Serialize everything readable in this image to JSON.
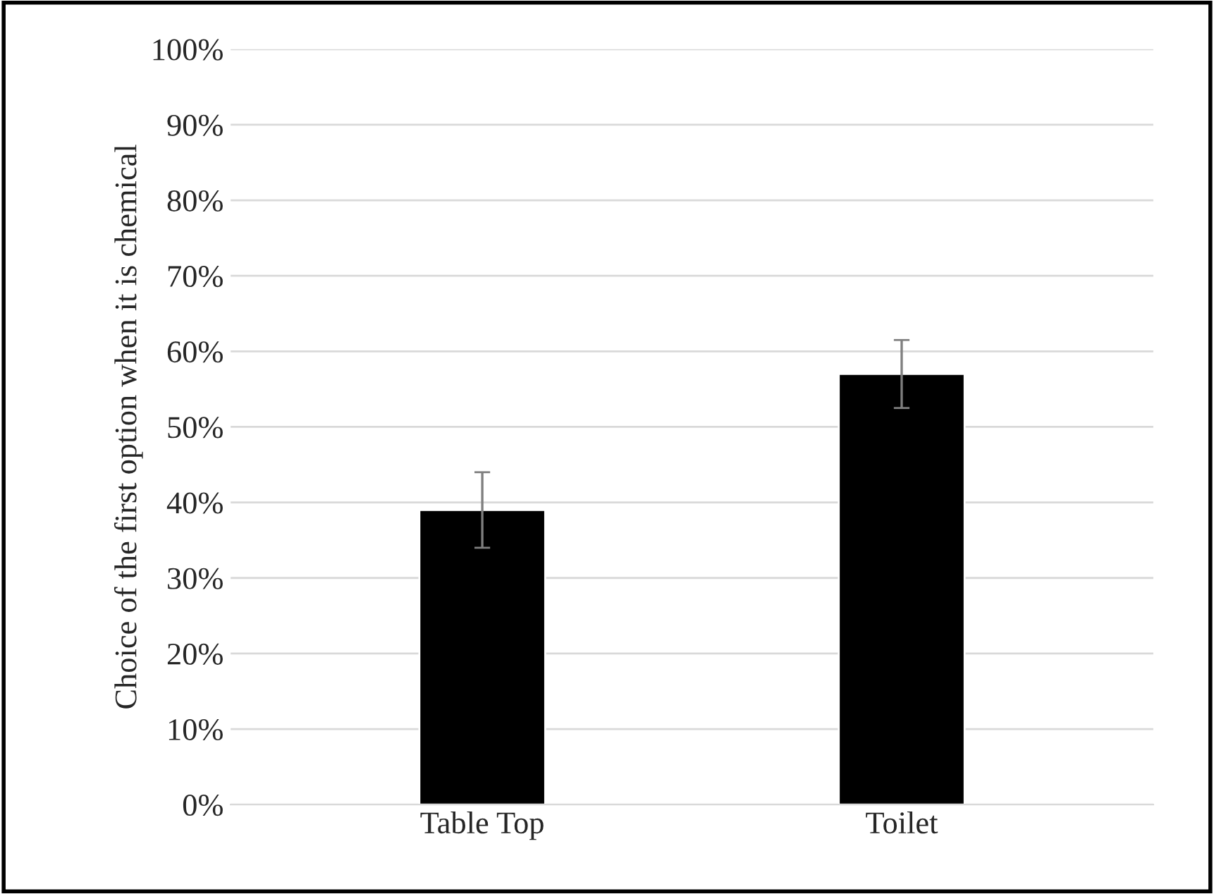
{
  "chart_data": {
    "type": "bar",
    "ylabel": "Choice of the first option when it is chemical",
    "categories": [
      "Table Top",
      "Toilet"
    ],
    "values": [
      39,
      57
    ],
    "errors": [
      [
        34,
        44
      ],
      [
        52.5,
        61.5
      ]
    ],
    "color": "#000000",
    "ylim": [
      0,
      100
    ],
    "yticks": [
      {
        "value": 0,
        "label": "0%"
      },
      {
        "value": 10,
        "label": "10%"
      },
      {
        "value": 20,
        "label": "20%"
      },
      {
        "value": 30,
        "label": "30%"
      },
      {
        "value": 40,
        "label": "40%"
      },
      {
        "value": 50,
        "label": "50%"
      },
      {
        "value": 60,
        "label": "60%"
      },
      {
        "value": 70,
        "label": "70%"
      },
      {
        "value": 80,
        "label": "80%"
      },
      {
        "value": 90,
        "label": "90%"
      },
      {
        "value": 100,
        "label": "100%"
      }
    ],
    "grid": "y"
  }
}
